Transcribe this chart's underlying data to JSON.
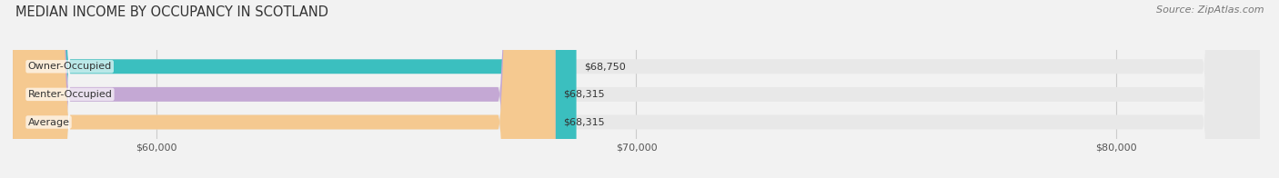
{
  "title": "MEDIAN INCOME BY OCCUPANCY IN SCOTLAND",
  "source": "Source: ZipAtlas.com",
  "categories": [
    "Owner-Occupied",
    "Renter-Occupied",
    "Average"
  ],
  "values": [
    68750,
    68315,
    68315
  ],
  "bar_colors": [
    "#3bbfbf",
    "#c4a8d4",
    "#f5c990"
  ],
  "bar_bg_color": "#e8e8e8",
  "value_labels": [
    "$68,750",
    "$68,315",
    "$68,315"
  ],
  "x_min": 57000,
  "x_max": 83000,
  "x_ticks": [
    60000,
    70000,
    80000
  ],
  "x_tick_labels": [
    "$60,000",
    "$70,000",
    "$80,000"
  ],
  "title_fontsize": 10.5,
  "source_fontsize": 8,
  "label_fontsize": 8,
  "value_fontsize": 8,
  "tick_fontsize": 8,
  "bar_height": 0.52,
  "background_color": "#f2f2f2"
}
